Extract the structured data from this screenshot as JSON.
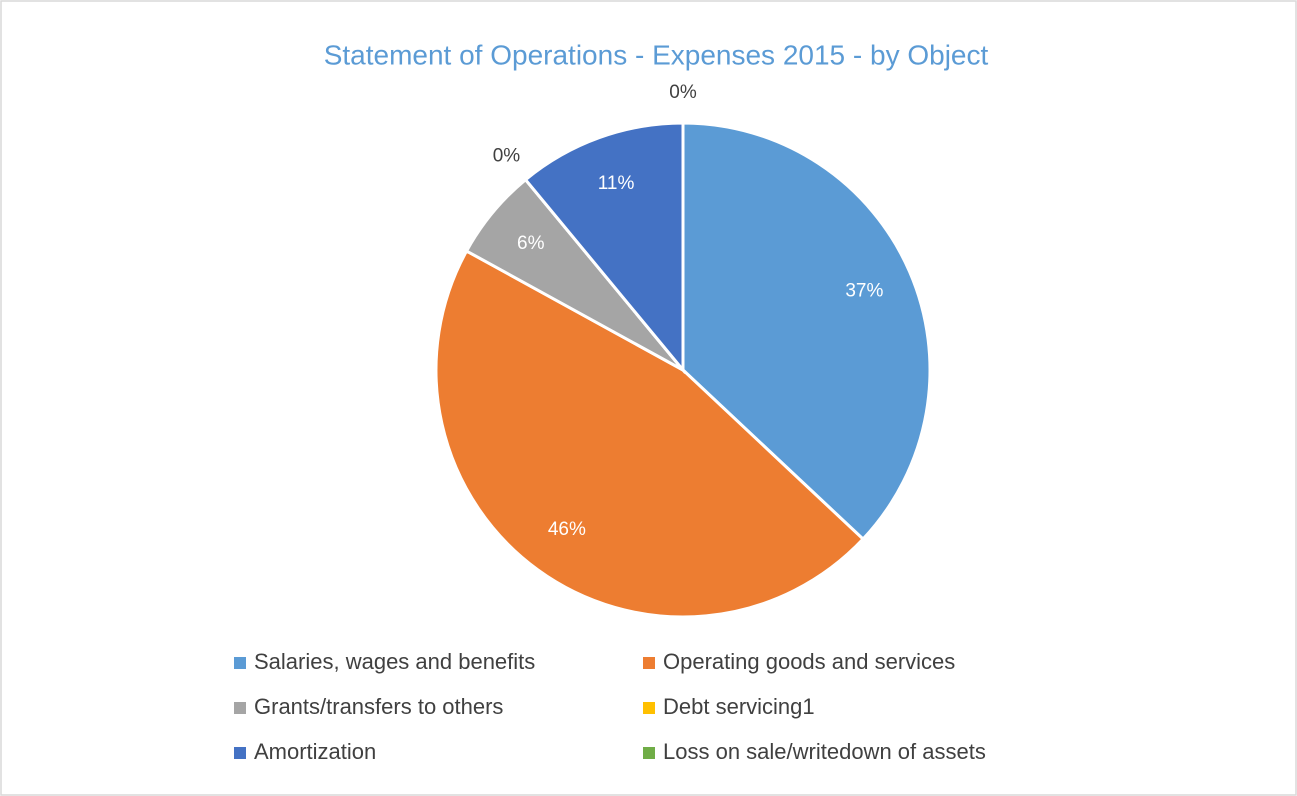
{
  "chart_data": {
    "type": "pie",
    "title": "Statement of Operations - Expenses 2015 - by Object",
    "categories": [
      "Salaries, wages and benefits",
      "Operating goods and services",
      "Grants/transfers to others",
      "Debt servicing1",
      "Amortization",
      "Loss  on sale/writedown of assets"
    ],
    "values": [
      37,
      46,
      6,
      0,
      11,
      0
    ],
    "value_labels": [
      "37%",
      "46%",
      "6%",
      "0%",
      "11%",
      "0%"
    ],
    "colors": [
      "#5b9bd5",
      "#ed7d31",
      "#a5a5a5",
      "#ffc000",
      "#4472c4",
      "#70ad47"
    ]
  }
}
